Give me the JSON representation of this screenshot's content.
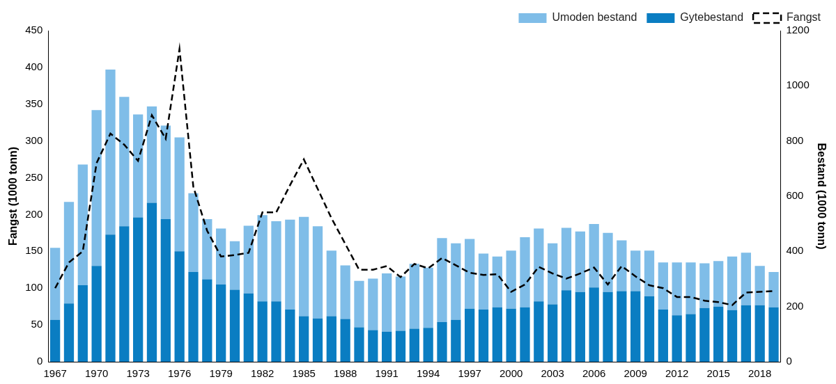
{
  "chart_data": {
    "type": "bar",
    "stacked": true,
    "grid": false,
    "legend": "upper right",
    "categories": [
      "1967",
      null,
      null,
      "1970",
      null,
      null,
      "1973",
      null,
      null,
      "1976",
      null,
      null,
      "1979",
      null,
      null,
      "1982",
      null,
      null,
      "1985",
      null,
      null,
      "1988",
      null,
      null,
      "1991",
      null,
      null,
      "1994",
      null,
      null,
      "1997",
      null,
      null,
      "2000",
      null,
      null,
      "2003",
      null,
      null,
      "2006",
      null,
      null,
      "2009",
      null,
      null,
      "2012",
      null,
      null,
      "2015",
      null,
      null,
      "2018",
      null
    ],
    "y_label": "Fangst (1000 tonn)",
    "y2_label": "Bestand (1000 tonn)",
    "ylim": [
      0,
      450
    ],
    "yticks": [
      0,
      50,
      100,
      150,
      200,
      250,
      300,
      350,
      400,
      450
    ],
    "y2lim": [
      0,
      1200
    ],
    "y2ticks": [
      0,
      200,
      400,
      600,
      800,
      1000,
      1200
    ],
    "series": [
      {
        "name": "Umoden bestand",
        "type": "bar",
        "axis": "y2",
        "color": "#7fbde8",
        "values": [
          261,
          368,
          438,
          565,
          598,
          469,
          373,
          349,
          339,
          413,
          286,
          218,
          203,
          176,
          245,
          312,
          290,
          326,
          360,
          334,
          238,
          194,
          168,
          186,
          211,
          197,
          235,
          218,
          304,
          277,
          253,
          203,
          184,
          211,
          254,
          264,
          221,
          226,
          219,
          230,
          214,
          184,
          147,
          166,
          171,
          192,
          187,
          162,
          165,
          194,
          190,
          142,
          128
        ]
      },
      {
        "name": "Gytebestand",
        "type": "bar",
        "axis": "y2",
        "color": "#0a7dc2",
        "values": [
          152,
          211,
          277,
          347,
          461,
          491,
          523,
          576,
          517,
          400,
          325,
          299,
          280,
          261,
          248,
          219,
          219,
          189,
          165,
          157,
          165,
          155,
          125,
          115,
          109,
          112,
          120,
          123,
          144,
          152,
          192,
          189,
          197,
          192,
          197,
          219,
          208,
          259,
          253,
          269,
          253,
          256,
          256,
          237,
          189,
          168,
          173,
          195,
          200,
          187,
          205,
          205,
          197
        ]
      },
      {
        "name": "Fangst",
        "type": "line",
        "axis": "y",
        "color": "#000000",
        "line_style": "dashed",
        "marker": "none",
        "values": [
          100,
          135,
          150,
          270,
          310,
          295,
          273,
          335,
          303,
          425,
          238,
          178,
          143,
          145,
          148,
          203,
          203,
          240,
          275,
          235,
          195,
          160,
          125,
          125,
          130,
          115,
          133,
          127,
          141,
          131,
          121,
          118,
          119,
          95,
          105,
          129,
          120,
          113,
          120,
          128,
          105,
          130,
          116,
          104,
          100,
          88,
          88,
          83,
          81,
          77,
          94,
          95,
          96
        ]
      }
    ]
  }
}
